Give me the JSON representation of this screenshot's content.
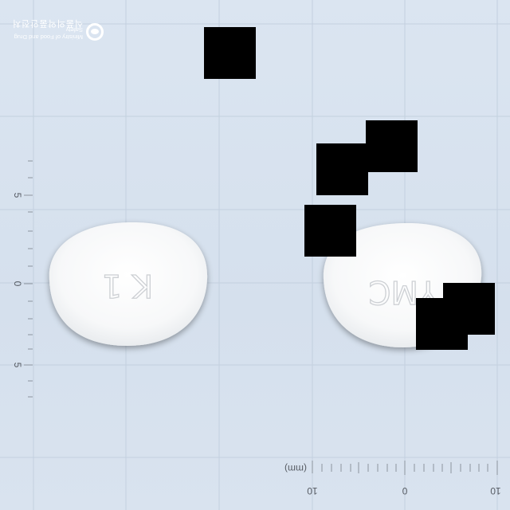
{
  "watermark": {
    "korean": "식품의약품안전처",
    "english": "Ministry of Food and Drug Safety"
  },
  "scale": {
    "y_labels": [
      "5",
      "0",
      "5"
    ],
    "x_labels": [
      "10",
      "0",
      "10"
    ],
    "unit": "(mm)"
  },
  "tablets": [
    {
      "name": "left-face",
      "imprint": "K 1"
    },
    {
      "name": "right-face",
      "imprint": "YMC"
    }
  ]
}
